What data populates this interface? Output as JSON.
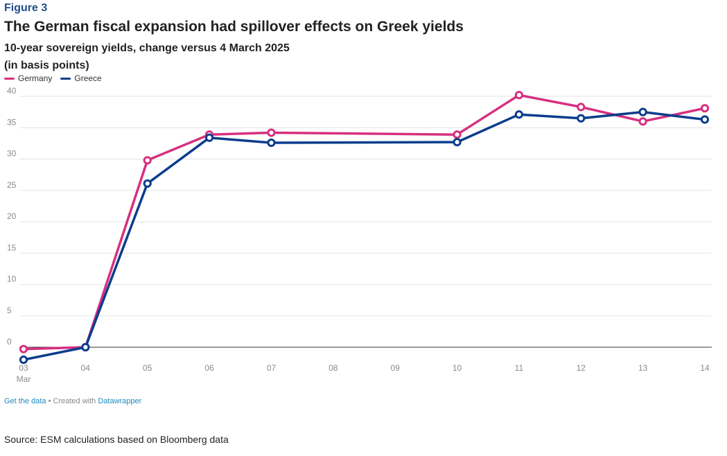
{
  "figure_label": "Figure 3",
  "chart_data": {
    "type": "line",
    "title": "The German fiscal expansion had spillover effects on Greek yields",
    "subtitle_line1": "10-year sovereign yields, change versus 4 March 2025",
    "subtitle_line2": "(in basis points)",
    "x": [
      "03",
      "04",
      "05",
      "06",
      "07",
      "08",
      "09",
      "10",
      "11",
      "12",
      "13",
      "14"
    ],
    "x_sublabel_first": "Mar",
    "yticks": [
      0,
      5,
      10,
      15,
      20,
      25,
      30,
      35,
      40
    ],
    "ylim": [
      -2,
      40
    ],
    "grid": true,
    "legend_position": "top-left",
    "series": [
      {
        "name": "Germany",
        "color": "#d6307f",
        "points": [
          {
            "x": "03",
            "y": -0.3
          },
          {
            "x": "04",
            "y": 0
          },
          {
            "x": "05",
            "y": 29.8
          },
          {
            "x": "06",
            "y": 33.9
          },
          {
            "x": "07",
            "y": 34.2
          },
          {
            "x": "10",
            "y": 33.9
          },
          {
            "x": "11",
            "y": 40.2
          },
          {
            "x": "12",
            "y": 38.3
          },
          {
            "x": "13",
            "y": 36.0
          },
          {
            "x": "14",
            "y": 38.1
          }
        ]
      },
      {
        "name": "Greece",
        "color": "#0b3d8c",
        "points": [
          {
            "x": "03",
            "y": -2.0
          },
          {
            "x": "04",
            "y": 0
          },
          {
            "x": "05",
            "y": 26.1
          },
          {
            "x": "06",
            "y": 33.4
          },
          {
            "x": "07",
            "y": 32.6
          },
          {
            "x": "10",
            "y": 32.7
          },
          {
            "x": "11",
            "y": 37.1
          },
          {
            "x": "12",
            "y": 36.5
          },
          {
            "x": "13",
            "y": 37.5
          },
          {
            "x": "14",
            "y": 36.3
          }
        ]
      }
    ]
  },
  "footer": {
    "get_data": "Get the data",
    "created_with": " • Created with ",
    "datawrapper": "Datawrapper"
  },
  "source": "Source: ESM calculations based on Bloomberg data"
}
